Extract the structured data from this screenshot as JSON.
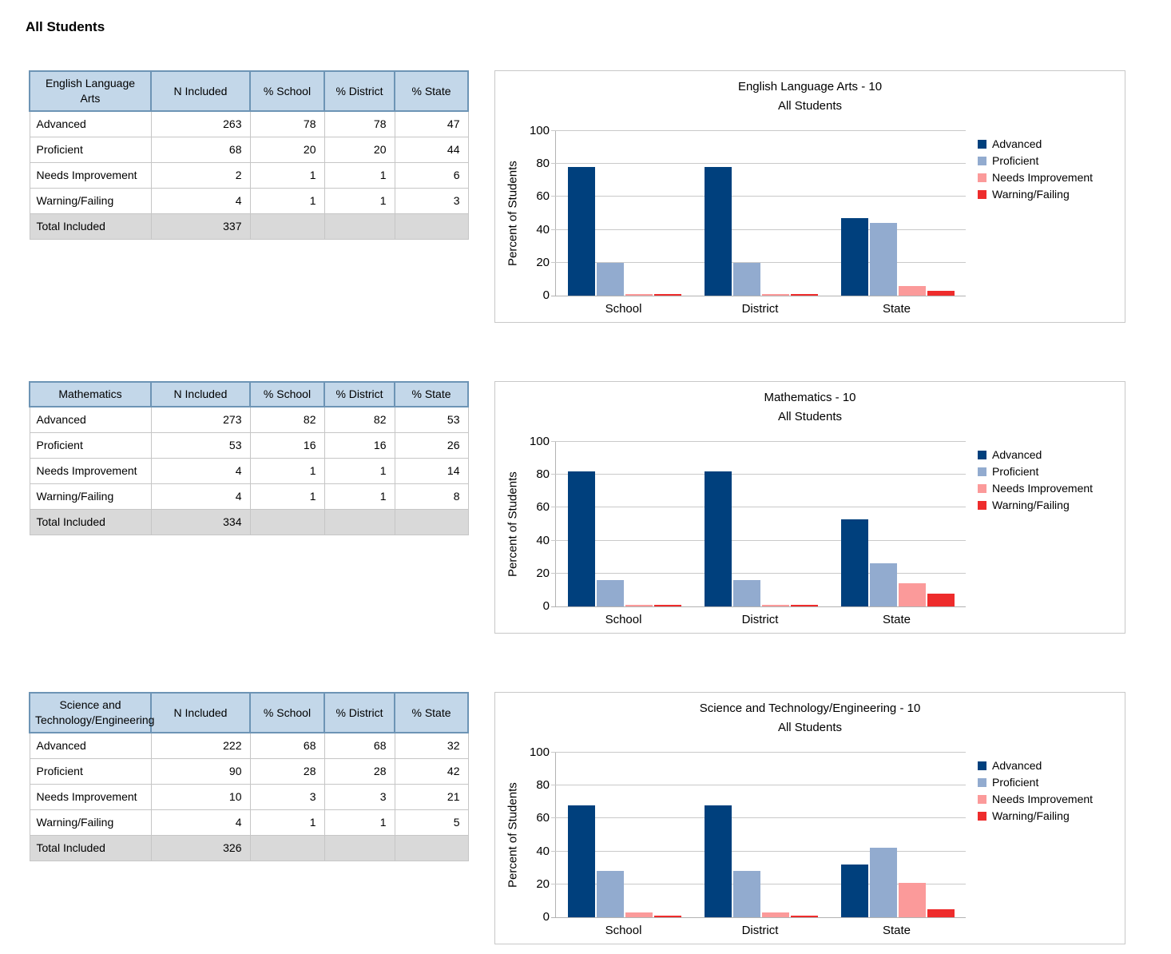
{
  "page": {
    "heading": "All Students"
  },
  "labels": {
    "total": "Total Included"
  },
  "columns": [
    "N Included",
    "% School",
    "% District",
    "% State"
  ],
  "categories": [
    "School",
    "District",
    "State"
  ],
  "legend": [
    "Advanced",
    "Proficient",
    "Needs Improvement",
    "Warning/Failing"
  ],
  "ylabel": "Percent of Students",
  "yticks": [
    100,
    80,
    60,
    40,
    20,
    0
  ],
  "chart_subtitle": "All Students",
  "colors": {
    "advanced": "#00407D",
    "proficient": "#92ABCF",
    "needs_improvement": "#FB9A9A",
    "warning_failing": "#EE2C2C",
    "table_header_bg": "#C3D7E9",
    "table_header_border": "#6D94B5",
    "table_body_border": "#C6C6C6",
    "total_row_bg": "#D9D9D9",
    "gridline": "#C9C9C9"
  },
  "sections": [
    {
      "subject": "English Language Arts",
      "chart_title": "English Language Arts - 10",
      "rows": [
        {
          "label": "Advanced",
          "n": 263,
          "school": 78,
          "district": 78,
          "state": 47
        },
        {
          "label": "Proficient",
          "n": 68,
          "school": 20,
          "district": 20,
          "state": 44
        },
        {
          "label": "Needs Improvement",
          "n": 2,
          "school": 1,
          "district": 1,
          "state": 6
        },
        {
          "label": "Warning/Failing",
          "n": 4,
          "school": 1,
          "district": 1,
          "state": 3
        }
      ],
      "total": 337
    },
    {
      "subject": "Mathematics",
      "chart_title": "Mathematics - 10",
      "rows": [
        {
          "label": "Advanced",
          "n": 273,
          "school": 82,
          "district": 82,
          "state": 53
        },
        {
          "label": "Proficient",
          "n": 53,
          "school": 16,
          "district": 16,
          "state": 26
        },
        {
          "label": "Needs Improvement",
          "n": 4,
          "school": 1,
          "district": 1,
          "state": 14
        },
        {
          "label": "Warning/Failing",
          "n": 4,
          "school": 1,
          "district": 1,
          "state": 8
        }
      ],
      "total": 334
    },
    {
      "subject": "Science and Technology/Engineering",
      "chart_title": "Science and Technology/Engineering - 10",
      "rows": [
        {
          "label": "Advanced",
          "n": 222,
          "school": 68,
          "district": 68,
          "state": 32
        },
        {
          "label": "Proficient",
          "n": 90,
          "school": 28,
          "district": 28,
          "state": 42
        },
        {
          "label": "Needs Improvement",
          "n": 10,
          "school": 3,
          "district": 3,
          "state": 21
        },
        {
          "label": "Warning/Failing",
          "n": 4,
          "school": 1,
          "district": 1,
          "state": 5
        }
      ],
      "total": 326
    }
  ],
  "chart_data": [
    {
      "type": "bar",
      "title": "English Language Arts - 10",
      "subtitle": "All Students",
      "categories": [
        "School",
        "District",
        "State"
      ],
      "series": [
        {
          "name": "Advanced",
          "values": [
            78,
            78,
            47
          ]
        },
        {
          "name": "Proficient",
          "values": [
            20,
            20,
            44
          ]
        },
        {
          "name": "Needs Improvement",
          "values": [
            1,
            1,
            6
          ]
        },
        {
          "name": "Warning/Failing",
          "values": [
            1,
            1,
            3
          ]
        }
      ],
      "xlabel": "",
      "ylabel": "Percent of Students",
      "ylim": [
        0,
        100
      ],
      "yticks": [
        0,
        20,
        40,
        60,
        80,
        100
      ],
      "grid": true,
      "legend_position": "right"
    },
    {
      "type": "bar",
      "title": "Mathematics - 10",
      "subtitle": "All Students",
      "categories": [
        "School",
        "District",
        "State"
      ],
      "series": [
        {
          "name": "Advanced",
          "values": [
            82,
            82,
            53
          ]
        },
        {
          "name": "Proficient",
          "values": [
            16,
            16,
            26
          ]
        },
        {
          "name": "Needs Improvement",
          "values": [
            1,
            1,
            14
          ]
        },
        {
          "name": "Warning/Failing",
          "values": [
            1,
            1,
            8
          ]
        }
      ],
      "xlabel": "",
      "ylabel": "Percent of Students",
      "ylim": [
        0,
        100
      ],
      "yticks": [
        0,
        20,
        40,
        60,
        80,
        100
      ],
      "grid": true,
      "legend_position": "right"
    },
    {
      "type": "bar",
      "title": "Science and Technology/Engineering - 10",
      "subtitle": "All Students",
      "categories": [
        "School",
        "District",
        "State"
      ],
      "series": [
        {
          "name": "Advanced",
          "values": [
            68,
            68,
            32
          ]
        },
        {
          "name": "Proficient",
          "values": [
            28,
            28,
            42
          ]
        },
        {
          "name": "Needs Improvement",
          "values": [
            3,
            3,
            21
          ]
        },
        {
          "name": "Warning/Failing",
          "values": [
            1,
            1,
            5
          ]
        }
      ],
      "xlabel": "",
      "ylabel": "Percent of Students",
      "ylim": [
        0,
        100
      ],
      "yticks": [
        0,
        20,
        40,
        60,
        80,
        100
      ],
      "grid": true,
      "legend_position": "right"
    }
  ]
}
